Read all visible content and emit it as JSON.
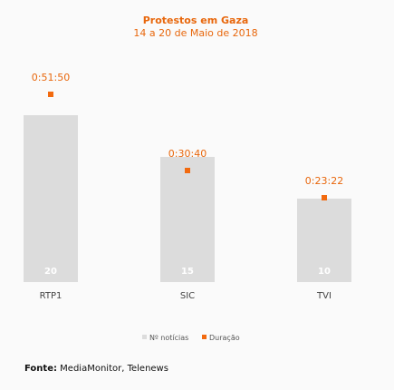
{
  "chart_data": {
    "type": "bar",
    "title": "Protestos em Gaza",
    "subtitle": "14 a 20 de Maio de 2018",
    "categories": [
      "RTP1",
      "SIC",
      "TVI"
    ],
    "series": [
      {
        "name": "Nº notícias",
        "values": [
          20,
          15,
          10
        ],
        "color": "#dcdcdc"
      },
      {
        "name": "Duração",
        "values": [
          "0:51:50",
          "0:30:40",
          "0:23:22"
        ],
        "color": "#f26a0f"
      }
    ],
    "ylim": [
      0,
      25
    ],
    "grid": false,
    "legend_position": "bottom"
  },
  "source": {
    "label": "Fonte:",
    "text": "MediaMonitor, Telenews"
  }
}
